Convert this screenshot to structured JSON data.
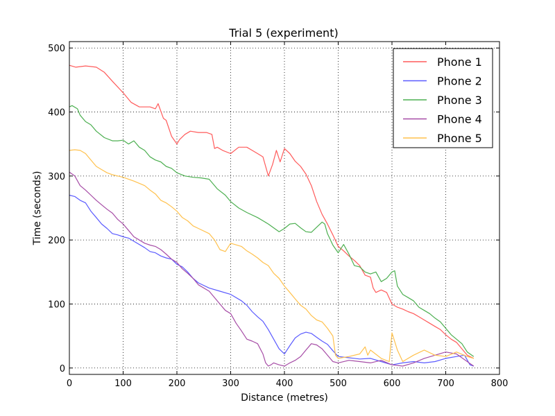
{
  "chart_data": {
    "type": "line",
    "title": "Trial 5 (experiment)",
    "xlabel": "Distance (metres)",
    "ylabel": "Time (seconds)",
    "xlim": [
      0,
      800
    ],
    "ylim": [
      -10,
      510
    ],
    "xticks": [
      0,
      100,
      200,
      300,
      400,
      500,
      600,
      700,
      800
    ],
    "yticks": [
      0,
      100,
      200,
      300,
      400,
      500
    ],
    "grid": true,
    "legend_position": "top-right",
    "series": [
      {
        "name": "Phone 1",
        "color": "#ff5a5a",
        "x": [
          0,
          12,
          30,
          50,
          65,
          80,
          100,
          115,
          130,
          150,
          160,
          165,
          175,
          180,
          190,
          200,
          205,
          215,
          225,
          240,
          255,
          265,
          270,
          275,
          285,
          300,
          315,
          330,
          340,
          350,
          360,
          370,
          378,
          385,
          392,
          400,
          410,
          420,
          430,
          440,
          450,
          460,
          470,
          480,
          490,
          500,
          510,
          520,
          530,
          540,
          550,
          560,
          565,
          570,
          580,
          590,
          600,
          610,
          620,
          630,
          640,
          650,
          660,
          670,
          680,
          690,
          700,
          710,
          720,
          730,
          740,
          752
        ],
        "y": [
          473,
          470,
          472,
          470,
          462,
          448,
          430,
          415,
          408,
          408,
          405,
          413,
          390,
          387,
          362,
          350,
          357,
          365,
          370,
          368,
          368,
          365,
          343,
          345,
          340,
          335,
          345,
          345,
          340,
          335,
          330,
          300,
          318,
          340,
          322,
          343,
          335,
          323,
          315,
          303,
          285,
          260,
          240,
          225,
          208,
          190,
          183,
          175,
          168,
          160,
          145,
          142,
          125,
          118,
          122,
          118,
          100,
          95,
          92,
          88,
          85,
          80,
          75,
          70,
          65,
          60,
          52,
          45,
          40,
          30,
          20,
          15
        ]
      },
      {
        "name": "Phone 2",
        "color": "#5a5aff",
        "x": [
          0,
          10,
          20,
          30,
          40,
          50,
          60,
          70,
          80,
          90,
          100,
          110,
          120,
          140,
          150,
          160,
          170,
          180,
          190,
          200,
          210,
          220,
          230,
          240,
          260,
          280,
          300,
          320,
          330,
          340,
          350,
          360,
          370,
          380,
          390,
          400,
          410,
          420,
          430,
          440,
          450,
          460,
          470,
          480,
          490,
          500,
          520,
          540,
          560,
          580,
          600,
          620,
          640,
          660,
          680,
          700,
          720,
          735,
          745,
          752
        ],
        "y": [
          270,
          268,
          262,
          258,
          245,
          235,
          225,
          218,
          210,
          208,
          205,
          203,
          198,
          188,
          182,
          180,
          175,
          172,
          170,
          162,
          158,
          150,
          140,
          133,
          125,
          120,
          115,
          105,
          98,
          88,
          80,
          73,
          60,
          45,
          30,
          22,
          35,
          47,
          53,
          56,
          54,
          48,
          42,
          37,
          27,
          18,
          16,
          14,
          15,
          10,
          5,
          8,
          10,
          8,
          10,
          15,
          18,
          20,
          5,
          3
        ]
      },
      {
        "name": "Phone 3",
        "color": "#4caf50",
        "x": [
          0,
          5,
          15,
          20,
          30,
          40,
          50,
          65,
          80,
          90,
          100,
          110,
          120,
          130,
          140,
          150,
          160,
          170,
          180,
          190,
          200,
          215,
          230,
          245,
          260,
          275,
          290,
          300,
          315,
          330,
          350,
          370,
          390,
          400,
          410,
          420,
          430,
          440,
          450,
          460,
          470,
          475,
          480,
          490,
          500,
          510,
          520,
          530,
          540,
          550,
          560,
          570,
          580,
          590,
          600,
          605,
          610,
          620,
          630,
          640,
          650,
          660,
          670,
          680,
          690,
          700,
          710,
          720,
          730,
          740,
          752
        ],
        "y": [
          408,
          410,
          405,
          395,
          385,
          380,
          370,
          360,
          355,
          355,
          356,
          350,
          355,
          345,
          340,
          330,
          325,
          322,
          315,
          312,
          305,
          300,
          298,
          297,
          295,
          280,
          270,
          260,
          250,
          243,
          235,
          225,
          213,
          218,
          225,
          226,
          219,
          213,
          212,
          220,
          228,
          225,
          210,
          192,
          180,
          193,
          178,
          160,
          158,
          150,
          147,
          150,
          135,
          140,
          150,
          152,
          128,
          115,
          110,
          105,
          95,
          90,
          85,
          78,
          72,
          62,
          52,
          45,
          38,
          25,
          18
        ]
      },
      {
        "name": "Phone 4",
        "color": "#a64ca6",
        "x": [
          0,
          10,
          20,
          30,
          40,
          50,
          60,
          70,
          80,
          90,
          100,
          110,
          120,
          130,
          140,
          150,
          160,
          170,
          180,
          190,
          200,
          210,
          220,
          230,
          240,
          260,
          280,
          290,
          300,
          310,
          320,
          330,
          340,
          350,
          360,
          365,
          370,
          375,
          380,
          390,
          400,
          410,
          420,
          430,
          440,
          450,
          460,
          470,
          480,
          490,
          500,
          520,
          540,
          560,
          580,
          600,
          620,
          640,
          660,
          680,
          700,
          720,
          740,
          752
        ],
        "y": [
          306,
          300,
          285,
          278,
          270,
          262,
          255,
          248,
          242,
          232,
          225,
          215,
          205,
          200,
          195,
          192,
          190,
          185,
          178,
          170,
          165,
          155,
          148,
          140,
          130,
          120,
          100,
          90,
          85,
          70,
          58,
          45,
          42,
          38,
          22,
          8,
          3,
          5,
          8,
          5,
          3,
          8,
          12,
          18,
          28,
          38,
          36,
          30,
          20,
          10,
          8,
          12,
          10,
          8,
          12,
          5,
          3,
          8,
          15,
          20,
          25,
          22,
          10,
          3
        ]
      },
      {
        "name": "Phone 5",
        "color": "#ffc14d",
        "x": [
          0,
          10,
          20,
          30,
          40,
          50,
          60,
          70,
          80,
          90,
          100,
          120,
          140,
          150,
          160,
          170,
          180,
          190,
          200,
          210,
          220,
          230,
          240,
          260,
          270,
          280,
          290,
          300,
          320,
          330,
          340,
          350,
          360,
          370,
          380,
          390,
          400,
          410,
          420,
          430,
          440,
          450,
          460,
          470,
          480,
          490,
          495,
          500,
          520,
          540,
          550,
          555,
          560,
          580,
          595,
          600,
          610,
          620,
          640,
          660,
          680,
          700,
          720,
          740,
          752
        ],
        "y": [
          340,
          341,
          340,
          335,
          325,
          315,
          310,
          305,
          302,
          300,
          298,
          292,
          285,
          278,
          272,
          262,
          258,
          252,
          245,
          235,
          230,
          222,
          218,
          210,
          200,
          185,
          182,
          195,
          190,
          183,
          178,
          172,
          165,
          160,
          148,
          140,
          128,
          118,
          108,
          98,
          92,
          82,
          75,
          72,
          62,
          50,
          20,
          15,
          18,
          22,
          33,
          20,
          28,
          15,
          10,
          55,
          28,
          10,
          20,
          28,
          20,
          18,
          25,
          18,
          15
        ]
      }
    ]
  }
}
